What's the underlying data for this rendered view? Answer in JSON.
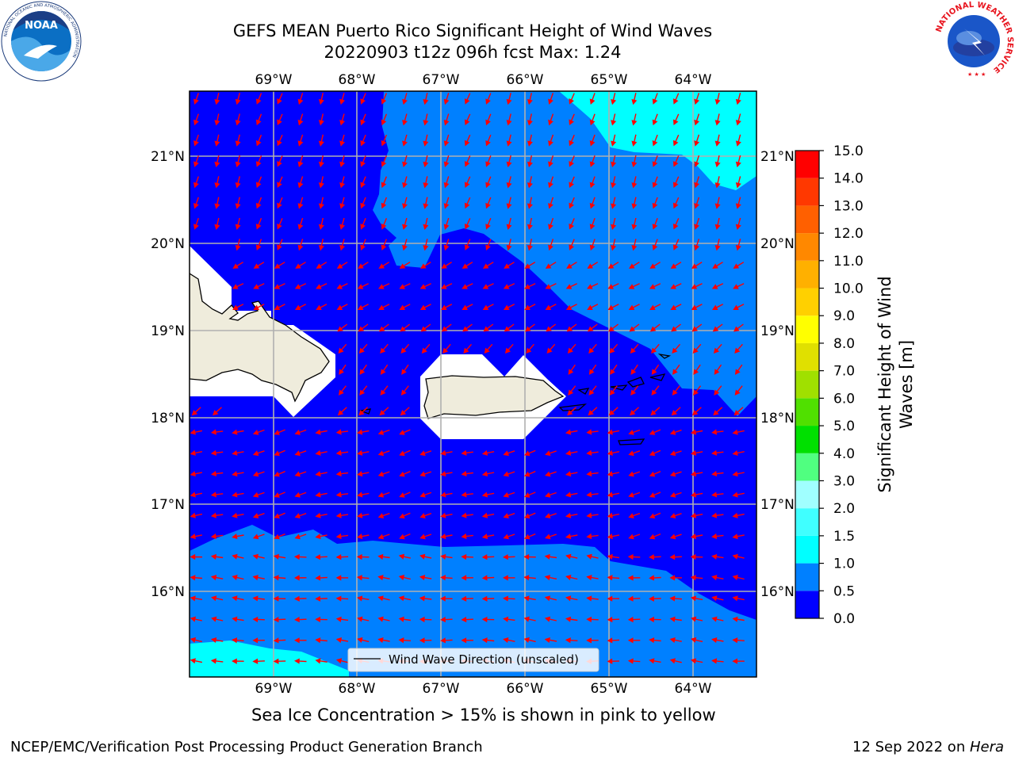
{
  "title": {
    "line1": "GEFS MEAN Puerto Rico Significant Height of Wind Waves",
    "line2": "20220903 t12z 096h fcst   Max: 1.24"
  },
  "map": {
    "lon_labels": [
      "69°W",
      "68°W",
      "67°W",
      "66°W",
      "65°W",
      "64°W"
    ],
    "lat_labels": [
      "21°N",
      "20°N",
      "19°N",
      "18°N",
      "17°N",
      "16°N"
    ],
    "legend_label": "Wind Wave Direction (unscaled)",
    "vector_color": "#ff0000",
    "land_color": "#efecdc"
  },
  "colorbar": {
    "label_line1": "Significant Height of Wind",
    "label_line2": "Waves [m]",
    "ticks": [
      "0.0",
      "0.5",
      "1.0",
      "1.5",
      "2.0",
      "3.0",
      "4.0",
      "5.0",
      "6.0",
      "7.0",
      "8.0",
      "9.0",
      "10.0",
      "11.0",
      "12.0",
      "13.0",
      "14.0",
      "15.0"
    ],
    "colors": [
      "#0000ff",
      "#0080ff",
      "#00ffff",
      "#40ffff",
      "#a0ffff",
      "#50ff80",
      "#00e000",
      "#50e000",
      "#a0e000",
      "#e0e000",
      "#ffff00",
      "#ffd000",
      "#ffb000",
      "#ff8800",
      "#ff6000",
      "#ff3800",
      "#ff0000"
    ]
  },
  "logos": {
    "noaa_text": "NOAA",
    "noaa_ring_text": "NATIONAL OCEANIC AND ATMOSPHERIC ADMINISTRATION",
    "noaa_ring_bottom": "U.S. DEPARTMENT OF COMMERCE",
    "nws_ring_text": "NATIONAL WEATHER SERVICE"
  },
  "note": "Sea Ice Concentration > 15% is shown in pink to yellow",
  "footer": {
    "left": "NCEP/EMC/Verification Post Processing Product Generation Branch",
    "right_prefix": "12 Sep 2022 on ",
    "right_host": "Hera"
  }
}
